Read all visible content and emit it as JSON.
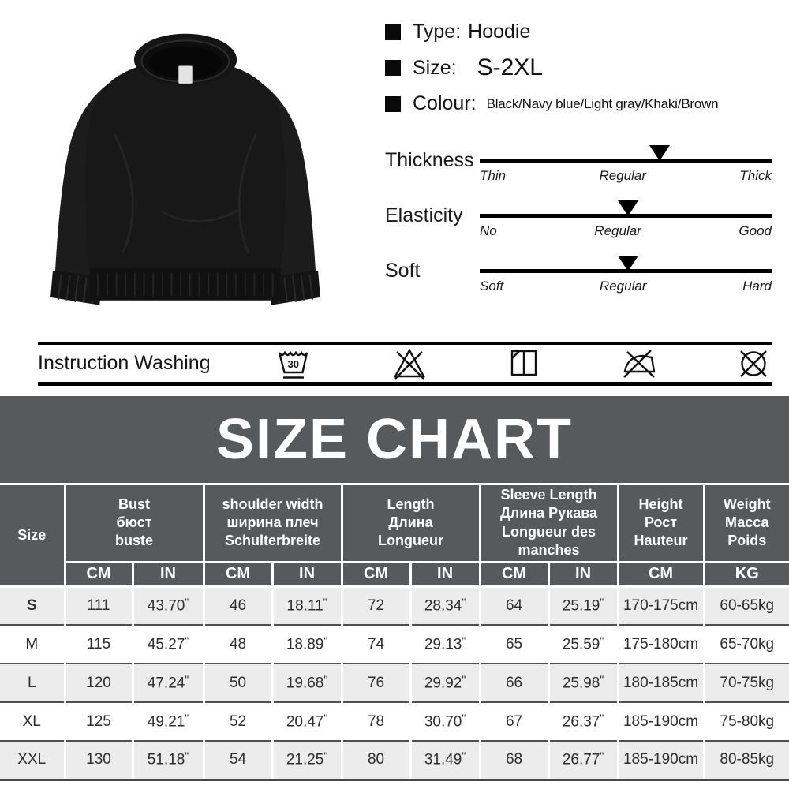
{
  "product": {
    "photo_alt": "black crewneck sweatshirt product photo",
    "bullets": [
      {
        "label": "Type:",
        "value": "Hoodie"
      },
      {
        "label": "Size:",
        "value": "S-2XL"
      },
      {
        "label": "Colour:",
        "value": "Black/Navy blue/Light gray/Khaki/Brown"
      }
    ]
  },
  "sliders": [
    {
      "name": "Thickness",
      "scale": [
        "Thin",
        "Regular",
        "Thick"
      ],
      "marker_pct": 61.7
    },
    {
      "name": "Elasticity",
      "scale": [
        "No",
        "Regular",
        "Good"
      ],
      "marker_pct": 50.8
    },
    {
      "name": "Soft",
      "scale": [
        "Soft",
        "Regular",
        "Hard"
      ],
      "marker_pct": 50.8
    }
  ],
  "washing": {
    "label": "Instruction Washing",
    "icons": [
      "wash-30-icon",
      "do-not-bleach-icon",
      "drip-dry-in-shade-icon",
      "do-not-iron-icon",
      "do-not-dry-clean-icon"
    ],
    "wash_temp": "30"
  },
  "size_chart": {
    "title": "SIZE CHART",
    "columns": [
      {
        "label": "Size"
      },
      {
        "title": "Bust\nбюст\nbuste",
        "units": [
          "CM",
          "IN"
        ]
      },
      {
        "title": "shoulder width\nширина плеч\nSchulterbreite",
        "units": [
          "CM",
          "IN"
        ]
      },
      {
        "title": "Length\nДлина\nLongueur",
        "units": [
          "CM",
          "IN"
        ]
      },
      {
        "title": "Sleeve Length\nДлина Рукава\nLongueur des\nmanches",
        "units": [
          "CM",
          "IN"
        ]
      },
      {
        "title": "Height\nРост\nHauteur",
        "units": [
          "CM"
        ]
      },
      {
        "title": "Weight\nМасса\nPoids",
        "units": [
          "KG"
        ]
      }
    ],
    "rows": [
      {
        "size": "S",
        "values": [
          "111",
          "43.70\"",
          "46",
          "18.11\"",
          "72",
          "28.34\"",
          "64",
          "25.19\"",
          "170-175cm",
          "60-65kg"
        ]
      },
      {
        "size": "M",
        "values": [
          "115",
          "45.27\"",
          "48",
          "18.89\"",
          "74",
          "29.13\"",
          "65",
          "25.59\"",
          "175-180cm",
          "65-70kg"
        ]
      },
      {
        "size": "L",
        "values": [
          "120",
          "47.24\"",
          "50",
          "19.68\"",
          "76",
          "29.92\"",
          "66",
          "25.98\"",
          "180-185cm",
          "70-75kg"
        ]
      },
      {
        "size": "XL",
        "values": [
          "125",
          "49.21\"",
          "52",
          "20.47\"",
          "78",
          "30.70\"",
          "67",
          "26.37\"",
          "185-190cm",
          "75-80kg"
        ]
      },
      {
        "size": "XXL",
        "values": [
          "130",
          "51.18\"",
          "54",
          "21.25\"",
          "80",
          "31.49\"",
          "68",
          "26.77\"",
          "185-190cm",
          "80-85kg"
        ]
      }
    ]
  },
  "colors": {
    "banner_bg": "#58595b",
    "row_shade": "#ececec",
    "bar_black": "#000000"
  }
}
